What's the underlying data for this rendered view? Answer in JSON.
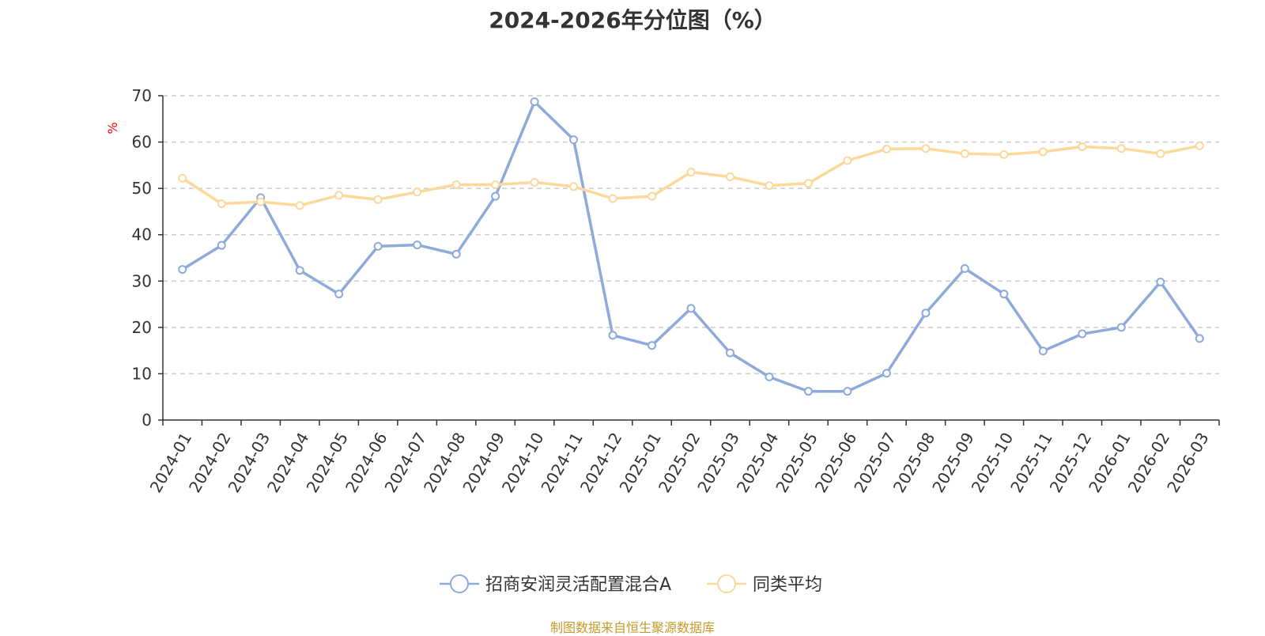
{
  "title": "2024-2026年分位图（%）",
  "source": "制图数据来自恒生聚源数据库",
  "chart_data": {
    "type": "line",
    "title": "2024-2026年分位图（%）",
    "ylabel": "%",
    "xlabel": "",
    "ylim": [
      0,
      70
    ],
    "yticks": [
      0,
      10,
      20,
      30,
      40,
      50,
      60,
      70
    ],
    "grid": true,
    "legend_position": "bottom-center",
    "categories": [
      "2024-01",
      "2024-02",
      "2024-03",
      "2024-04",
      "2024-05",
      "2024-06",
      "2024-07",
      "2024-08",
      "2024-09",
      "2024-10",
      "2024-11",
      "2024-12",
      "2025-01",
      "2025-02",
      "2025-03",
      "2025-04",
      "2025-05",
      "2025-06",
      "2025-07",
      "2025-08",
      "2025-09",
      "2025-10",
      "2025-11",
      "2025-12",
      "2026-01",
      "2026-02",
      "2026-03"
    ],
    "series": [
      {
        "name": "招商安润灵活配置混合A",
        "color": "#8eaadb",
        "values": [
          32.5,
          37.7,
          48,
          32.3,
          27.2,
          37.5,
          37.8,
          35.8,
          48.3,
          68.7,
          60.5,
          18.3,
          16.1,
          24.1,
          14.5,
          9.3,
          6.2,
          6.2,
          10.1,
          23.1,
          32.7,
          27.2,
          14.9,
          18.6,
          20,
          29.8,
          17.6
        ]
      },
      {
        "name": "同类平均",
        "color": "#fcd89a",
        "values": [
          52.2,
          46.7,
          47.1,
          46.3,
          48.5,
          47.6,
          49.2,
          50.8,
          50.8,
          51.3,
          50.4,
          47.8,
          48.3,
          53.5,
          52.5,
          50.6,
          51.1,
          56,
          58.5,
          58.6,
          57.5,
          57.3,
          57.9,
          59,
          58.6,
          57.5,
          59.2
        ]
      }
    ]
  }
}
